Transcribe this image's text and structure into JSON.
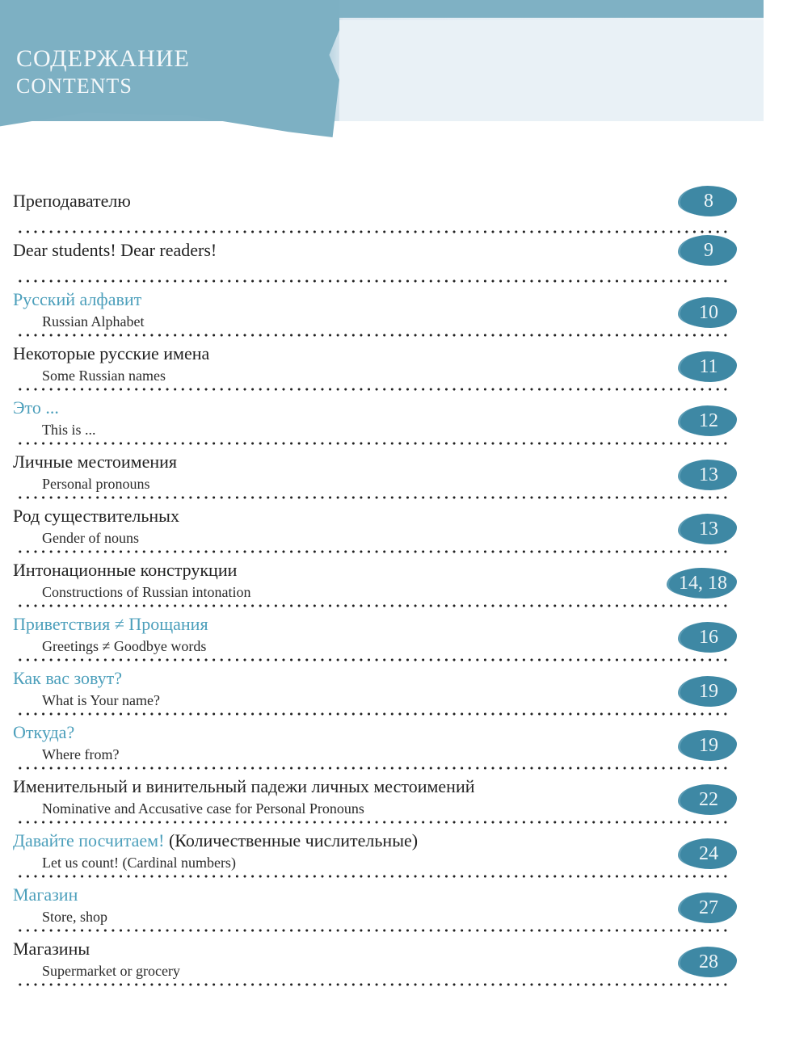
{
  "header": {
    "title_ru": "СОДЕРЖАНИЕ",
    "title_en": "CONTENTS"
  },
  "colors": {
    "accent_text": "#4c9fbb",
    "badge": "#3e88a4",
    "band": "#7fb1c4"
  },
  "entries": [
    {
      "title": "Преподавателю",
      "subtitle": "",
      "page": "8",
      "teal": true,
      "teal_part": "",
      "rest": "Преподавателю"
    },
    {
      "title": "Dear students! Dear readers!",
      "subtitle": "",
      "page": "9",
      "teal_part": "",
      "rest": "Dear students! Dear readers!"
    },
    {
      "title": "Русский алфавит",
      "subtitle": "Russian Alphabet",
      "page": "10",
      "teal_part": "Русский алфавит",
      "rest": ""
    },
    {
      "title": "Некоторые русские имена",
      "subtitle": "Some Russian names",
      "page": "11",
      "teal_part": "",
      "rest": "Некоторые русские имена"
    },
    {
      "title": "Это ...",
      "subtitle": "This is ...",
      "page": "12",
      "teal_part": "Это ...",
      "rest": ""
    },
    {
      "title": "Личные местоимения",
      "subtitle": "Personal pronouns",
      "page": "13",
      "teal_part": "",
      "rest": "Личные местоимения"
    },
    {
      "title": "Род существительных",
      "subtitle": "Gender of nouns",
      "page": "13",
      "teal_part": "",
      "rest": "Род существительных"
    },
    {
      "title": "Интонационные конструкции",
      "subtitle": "Constructions of Russian intonation",
      "page": "14, 18",
      "teal_part": "",
      "rest": "Интонационные конструкции"
    },
    {
      "title": "Приветствия ≠ Прощания",
      "subtitle": "Greetings ≠ Goodbye words",
      "page": "16",
      "teal_part": "Приветствия ≠ Прощания",
      "rest": ""
    },
    {
      "title": "Как вас зовут?",
      "subtitle": "What is Your name?",
      "page": "19",
      "teal_part": "Как вас зовут?",
      "rest": ""
    },
    {
      "title": "Откуда?",
      "subtitle": "Where from?",
      "page": "19",
      "teal_part": "Откуда?",
      "rest": ""
    },
    {
      "title": "Именительный и винительный падежи личных местоимений",
      "subtitle": "Nominative and Accusative case for Personal Pronouns",
      "page": "22",
      "teal_part": "",
      "rest": "Именительный и винительный падежи личных местоимений"
    },
    {
      "title": "Давайте посчитаем! (Количественные числительные)",
      "subtitle": "Let us count! (Cardinal numbers)",
      "page": "24",
      "teal_part": "Давайте посчитаем!",
      "rest": " (Количественные числительные)"
    },
    {
      "title": "Магазин",
      "subtitle": "Store, shop",
      "page": "27",
      "teal_part": "Магазин",
      "rest": ""
    },
    {
      "title": "Магазины",
      "subtitle": "Supermarket or grocery",
      "page": "28",
      "teal_part": "",
      "rest": "Магазины"
    }
  ]
}
